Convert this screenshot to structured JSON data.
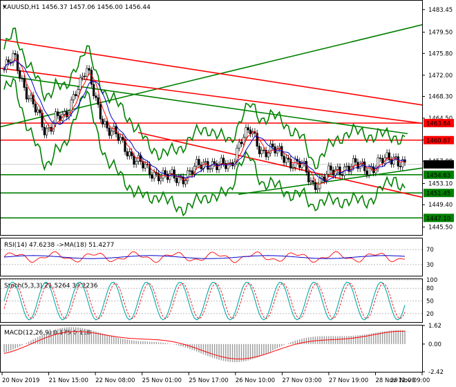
{
  "symbol_header": "XAUUSD,H1  1456.37 1457.06 1456.00 1456.44",
  "chart_data": [
    {
      "type": "candlestick",
      "title": "XAUUSD,H1",
      "ohlc_header": {
        "open": 1456.37,
        "high": 1457.06,
        "low": 1456.0,
        "close": 1456.44
      },
      "ylim": [
        1444.0,
        1485.0
      ],
      "y_ticks": [
        "1483.45",
        "1479.50",
        "1475.80",
        "1472.00",
        "1468.30",
        "1464.50",
        "1460.70",
        "1457.00",
        "1453.10",
        "1449.40",
        "1445.50"
      ],
      "price_tags": [
        {
          "label": "1463.64",
          "value": 1463.64,
          "color": "#ff0000"
        },
        {
          "label": "1460.67",
          "value": 1460.67,
          "color": "#ff0000"
        },
        {
          "label": "1456.44",
          "value": 1456.44,
          "color": "#000000"
        },
        {
          "label": "1454.63",
          "value": 1454.63,
          "color": "#008000"
        },
        {
          "label": "1451.45",
          "value": 1451.45,
          "color": "#008000"
        },
        {
          "label": "1447.10",
          "value": 1447.1,
          "color": "#008000"
        }
      ],
      "x_ticks": [
        "20 Nov 2019",
        "21 Nov 15:00",
        "22 Nov 08:00",
        "25 Nov 01:00",
        "25 Nov 17:00",
        "26 Nov 10:00",
        "27 Nov 03:00",
        "27 Nov 19:00",
        "28 Nov 12:00",
        "29 Nov 09:00"
      ],
      "close_path": [
        1473,
        1475,
        1470,
        1466,
        1462,
        1465,
        1464,
        1470,
        1473,
        1467,
        1463,
        1461,
        1459,
        1457,
        1455,
        1455,
        1454,
        1454,
        1455,
        1456,
        1457,
        1456,
        1456,
        1461,
        1462,
        1459,
        1459,
        1458,
        1457,
        1456,
        1453,
        1454,
        1455,
        1456,
        1456,
        1456,
        1456,
        1457,
        1458,
        1456
      ]
    },
    {
      "type": "line",
      "title": "RSI(14) 47.6238   ->MA(18) 51.4277",
      "ylim": [
        0,
        100
      ],
      "levels": [
        "70",
        "30"
      ],
      "series": [
        {
          "name": "RSI(14)",
          "last": 47.6238
        },
        {
          "name": "MA(18)",
          "last": 51.4277
        }
      ]
    },
    {
      "type": "line",
      "title": "Stoch(5,3,3) 21.5264 39.2236",
      "ylim": [
        0,
        100
      ],
      "levels": [
        "100",
        "80",
        "50",
        "20",
        "0"
      ],
      "series": [
        {
          "name": "main",
          "last": 21.5264
        },
        {
          "name": "signal",
          "last": 39.2236
        }
      ]
    },
    {
      "type": "bar",
      "title": "MACD(12,26,9) 0.175 0.118",
      "y_ticks": [
        "1.62",
        "0.00",
        "-2.42"
      ],
      "series": [
        {
          "name": "MACD",
          "last": 0.175
        },
        {
          "name": "signal",
          "last": 0.118
        }
      ]
    }
  ],
  "colors": {
    "red": "#ff0000",
    "green": "#008000",
    "blue": "#0000cc",
    "teal": "#00aaaa",
    "grid": "#d0d0d0",
    "gray": "#bbbbbb"
  }
}
